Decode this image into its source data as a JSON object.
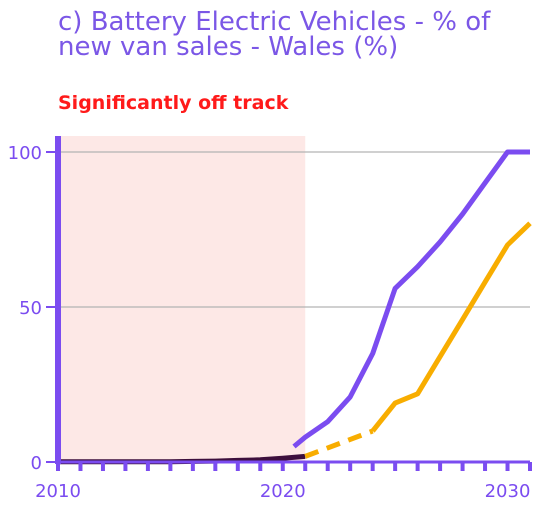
{
  "title": "c) Battery Electric Vehicles - % of new van sales - Wales (%)",
  "status": "Significantly off track",
  "colors": {
    "title": "#7b57e6",
    "status": "#ff1a1a",
    "historical_band": "#fde8e6",
    "historical": "#3d0f3d",
    "pathway": "#7b4cf0",
    "projection": "#f8ad00",
    "axis": "#7b4cf0",
    "grid": "#b3b3b3"
  },
  "chart_data": {
    "type": "line",
    "title": "c) Battery Electric Vehicles - % of new van sales - Wales (%)",
    "xlim": [
      2010,
      2031
    ],
    "ylim": [
      0,
      100
    ],
    "x_ticks": [
      "2010",
      "2020",
      "2030"
    ],
    "y_ticks": [
      "0",
      "50",
      "100"
    ],
    "gridlines_y": [
      50,
      100
    ],
    "historical_shading": [
      2010,
      2021
    ],
    "series": [
      {
        "key": "historical",
        "style": "solid",
        "x": [
          2010,
          2011,
          2012,
          2013,
          2014,
          2015,
          2016,
          2017,
          2018,
          2019,
          2020,
          2021
        ],
        "y": [
          0.1,
          0.1,
          0.1,
          0.1,
          0.1,
          0.1,
          0.2,
          0.3,
          0.5,
          0.7,
          1.2,
          1.8
        ]
      },
      {
        "key": "pathway",
        "style": "solid",
        "x": [
          2020.5,
          2021,
          2022,
          2023,
          2024,
          2025,
          2026,
          2027,
          2028,
          2029,
          2030,
          2031
        ],
        "y": [
          5,
          8,
          13,
          21,
          35,
          56,
          63,
          71,
          80,
          90,
          100,
          100
        ]
      },
      {
        "key": "projection-dashed",
        "style": "dashed",
        "x": [
          2021,
          2024
        ],
        "y": [
          1.8,
          10
        ]
      },
      {
        "key": "projection",
        "style": "solid",
        "x": [
          2024,
          2025,
          2026,
          2027,
          2028,
          2029,
          2030,
          2031
        ],
        "y": [
          10,
          19,
          22,
          34,
          46,
          58,
          70,
          77
        ]
      }
    ]
  }
}
